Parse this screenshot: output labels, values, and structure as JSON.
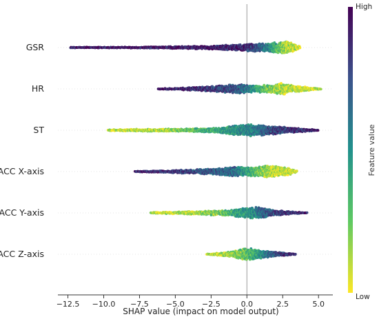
{
  "chart_data": {
    "type": "scatter",
    "subtype": "shap-beeswarm",
    "title": "",
    "xlabel": "SHAP value (impact on model output)",
    "xlim": [
      -13.2,
      6.0
    ],
    "xticks": [
      -12.5,
      -10.0,
      -7.5,
      -5.0,
      -2.5,
      0.0,
      2.5,
      5.0
    ],
    "xtick_labels": [
      "−12.5",
      "−10.0",
      "−7.5",
      "−5.0",
      "−2.5",
      "0.0",
      "2.5",
      "5.0"
    ],
    "zero_line": 0.0,
    "colorbar": {
      "title": "Feature value",
      "high_label": "High",
      "low_label": "Low",
      "colormap": [
        "#440154",
        "#3b528b",
        "#21918c",
        "#5ec962",
        "#fde725"
      ]
    },
    "features": [
      {
        "name": "GSR",
        "min": -12.3,
        "max": 3.7,
        "density": [
          [
            -12.3,
            0.6
          ],
          [
            -10,
            0.9
          ],
          [
            -7.5,
            1.1
          ],
          [
            -5,
            1.6
          ],
          [
            -2.5,
            2.6
          ],
          [
            -0.5,
            4.6
          ],
          [
            0.5,
            5.6
          ],
          [
            1.5,
            6.4
          ],
          [
            2.2,
            8.2
          ],
          [
            2.8,
            8.8
          ],
          [
            3.3,
            5.5
          ],
          [
            3.7,
            1.8
          ]
        ],
        "value_by_shap": [
          [
            -12.3,
            0.95
          ],
          [
            -6,
            0.93
          ],
          [
            -1,
            0.9
          ],
          [
            0.5,
            0.82
          ],
          [
            1.5,
            0.55
          ],
          [
            2.2,
            0.3
          ],
          [
            2.8,
            0.12
          ],
          [
            3.7,
            0.08
          ]
        ]
      },
      {
        "name": "HR",
        "min": -6.2,
        "max": 5.2,
        "density": [
          [
            -6.2,
            0.5
          ],
          [
            -5,
            1.2
          ],
          [
            -3.5,
            2.8
          ],
          [
            -2,
            4.5
          ],
          [
            -1,
            6.6
          ],
          [
            -0.3,
            6.9
          ],
          [
            0.3,
            5
          ],
          [
            1.2,
            5.5
          ],
          [
            2,
            6.6
          ],
          [
            2.5,
            8.8
          ],
          [
            3.2,
            5
          ],
          [
            4,
            3
          ],
          [
            5.2,
            0.6
          ]
        ],
        "value_by_shap": [
          [
            -6.2,
            0.92
          ],
          [
            -3,
            0.85
          ],
          [
            -1,
            0.75
          ],
          [
            0,
            0.62
          ],
          [
            1,
            0.32
          ],
          [
            2,
            0.15
          ],
          [
            3,
            0.08
          ],
          [
            5.2,
            0.05
          ]
        ]
      },
      {
        "name": "ST",
        "min": -9.7,
        "max": 5.0,
        "density": [
          [
            -9.7,
            0.8
          ],
          [
            -8,
            1.6
          ],
          [
            -6,
            1.9
          ],
          [
            -4,
            2.4
          ],
          [
            -2.5,
            3.2
          ],
          [
            -1.5,
            5.2
          ],
          [
            -0.5,
            7.4
          ],
          [
            0.3,
            8.6
          ],
          [
            1,
            7.8
          ],
          [
            2,
            6.2
          ],
          [
            3,
            3.9
          ],
          [
            4,
            2.3
          ],
          [
            5,
            0.6
          ]
        ],
        "value_by_shap": [
          [
            -9.7,
            0.05
          ],
          [
            -7,
            0.1
          ],
          [
            -5,
            0.18
          ],
          [
            -3,
            0.35
          ],
          [
            -1,
            0.5
          ],
          [
            0.5,
            0.58
          ],
          [
            1.5,
            0.72
          ],
          [
            2.5,
            0.82
          ],
          [
            5,
            0.92
          ]
        ]
      },
      {
        "name": "ACC X-axis",
        "min": -7.8,
        "max": 3.5,
        "density": [
          [
            -7.8,
            0.8
          ],
          [
            -6.5,
            1.2
          ],
          [
            -5,
            2.2
          ],
          [
            -3.5,
            3.3
          ],
          [
            -2,
            4.6
          ],
          [
            -1,
            7.4
          ],
          [
            0,
            6.2
          ],
          [
            0.7,
            7.2
          ],
          [
            1.5,
            8.8
          ],
          [
            2.5,
            7
          ],
          [
            3,
            4.5
          ],
          [
            3.5,
            1.2
          ]
        ],
        "value_by_shap": [
          [
            -7.8,
            0.93
          ],
          [
            -5,
            0.85
          ],
          [
            -2.5,
            0.72
          ],
          [
            -1,
            0.65
          ],
          [
            0,
            0.45
          ],
          [
            1,
            0.22
          ],
          [
            2,
            0.1
          ],
          [
            3.5,
            0.05
          ]
        ]
      },
      {
        "name": "ACC Y-axis",
        "min": -6.7,
        "max": 4.2,
        "density": [
          [
            -6.7,
            0.8
          ],
          [
            -5,
            1.6
          ],
          [
            -3.5,
            2.6
          ],
          [
            -2,
            3.6
          ],
          [
            -1,
            4.2
          ],
          [
            -0.3,
            7.2
          ],
          [
            0.5,
            8.8
          ],
          [
            1.2,
            7.1
          ],
          [
            2,
            3.8
          ],
          [
            3,
            2.2
          ],
          [
            4.2,
            0.6
          ]
        ],
        "value_by_shap": [
          [
            -6.7,
            0.08
          ],
          [
            -4,
            0.12
          ],
          [
            -2,
            0.22
          ],
          [
            -0.5,
            0.42
          ],
          [
            0.5,
            0.55
          ],
          [
            1.5,
            0.72
          ],
          [
            2.5,
            0.85
          ],
          [
            4.2,
            0.92
          ]
        ]
      },
      {
        "name": "ACC Z-axis",
        "min": -2.8,
        "max": 3.4,
        "density": [
          [
            -2.8,
            0.6
          ],
          [
            -1.8,
            2.2
          ],
          [
            -1,
            4.2
          ],
          [
            -0.5,
            6.8
          ],
          [
            0,
            9.2
          ],
          [
            0.6,
            7.5
          ],
          [
            1.2,
            5.2
          ],
          [
            2,
            3.4
          ],
          [
            2.8,
            1.8
          ],
          [
            3.4,
            0.6
          ]
        ],
        "value_by_shap": [
          [
            -2.8,
            0.1
          ],
          [
            -1.5,
            0.12
          ],
          [
            -0.5,
            0.2
          ],
          [
            0,
            0.3
          ],
          [
            0.7,
            0.4
          ],
          [
            1.5,
            0.62
          ],
          [
            2.5,
            0.85
          ],
          [
            3.4,
            0.93
          ]
        ]
      }
    ]
  }
}
